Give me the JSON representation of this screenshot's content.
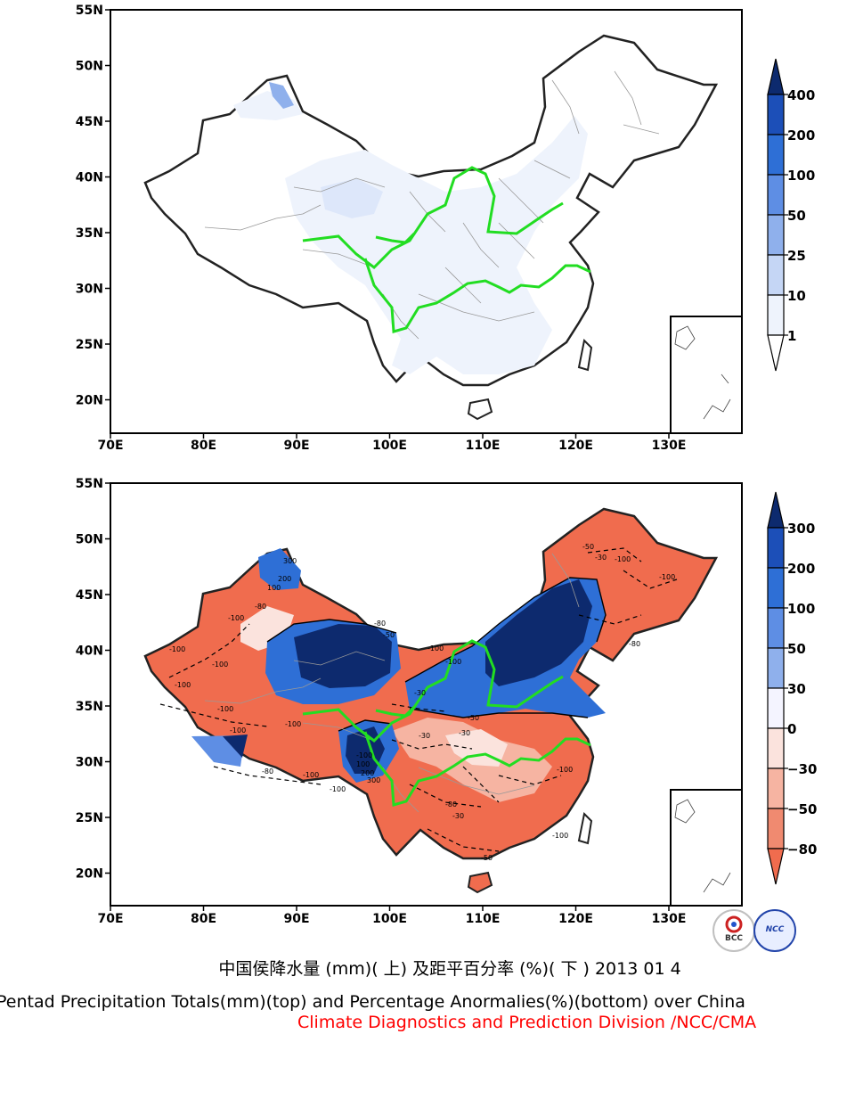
{
  "panels": [
    {
      "id": "top",
      "content": "Pentad precipitation totals (mm)",
      "lat_ticks": [
        "55N",
        "50N",
        "45N",
        "40N",
        "35N",
        "30N",
        "25N",
        "20N"
      ],
      "lon_ticks": [
        "70E",
        "80E",
        "90E",
        "100E",
        "110E",
        "120E",
        "130E"
      ],
      "colorbar": {
        "labels": [
          "400",
          "200",
          "100",
          "50",
          "25",
          "10",
          "1"
        ],
        "colors": [
          "#0d2a6e",
          "#1c4fb8",
          "#2e6fd6",
          "#5e8ee4",
          "#8fb0ec",
          "#c5d6f5",
          "#eef3fc",
          "#ffffff"
        ]
      },
      "contour_labels": []
    },
    {
      "id": "bottom",
      "content": "Percentage anomalies (%)",
      "lat_ticks": [
        "55N",
        "50N",
        "45N",
        "40N",
        "35N",
        "30N",
        "25N",
        "20N"
      ],
      "lon_ticks": [
        "70E",
        "80E",
        "90E",
        "100E",
        "110E",
        "120E",
        "130E"
      ],
      "colorbar": {
        "labels": [
          "300",
          "200",
          "100",
          "50",
          "30",
          "0",
          "−30",
          "−50",
          "−80"
        ],
        "colors": [
          "#0d2a6e",
          "#1c4fb8",
          "#2e6fd6",
          "#5e8ee4",
          "#8fb0ec",
          "#f4f4ff",
          "#fbe3dd",
          "#f6b4a2",
          "#f08a70",
          "#f06c4e"
        ]
      },
      "contour_labels": [
        "-100",
        "-100",
        "-80",
        "-100",
        "-100",
        "-100",
        "-100",
        "-100",
        "-80",
        "-100",
        "-100",
        "-30",
        "300",
        "200",
        "100",
        "-50",
        "-30",
        "-100",
        "-100",
        "-80",
        "-50",
        "-30",
        "-100",
        "-100",
        "-50",
        "-30",
        "-80",
        "-100",
        "100",
        "200",
        "300",
        "-100",
        "-80",
        "-30",
        "-50",
        "-100"
      ]
    }
  ],
  "caption_cn": "中国侯降水量 (mm)( 上) 及距平百分率 (%)( 下 ) 2013 01 4",
  "caption_en": "Pentad Precipitation Totals(mm)(top) and Percentage Anormalies(%)(bottom) over China",
  "caption_org": "Climate Diagnostics and Prediction Division /NCC/CMA",
  "logos": [
    "BCC",
    "NCC"
  ],
  "colors": {
    "river": "#22dd22",
    "border": "#222222",
    "province": "#999999",
    "anomaly_red": "#f06c4e",
    "anomaly_blue": "#0d2a6e"
  }
}
